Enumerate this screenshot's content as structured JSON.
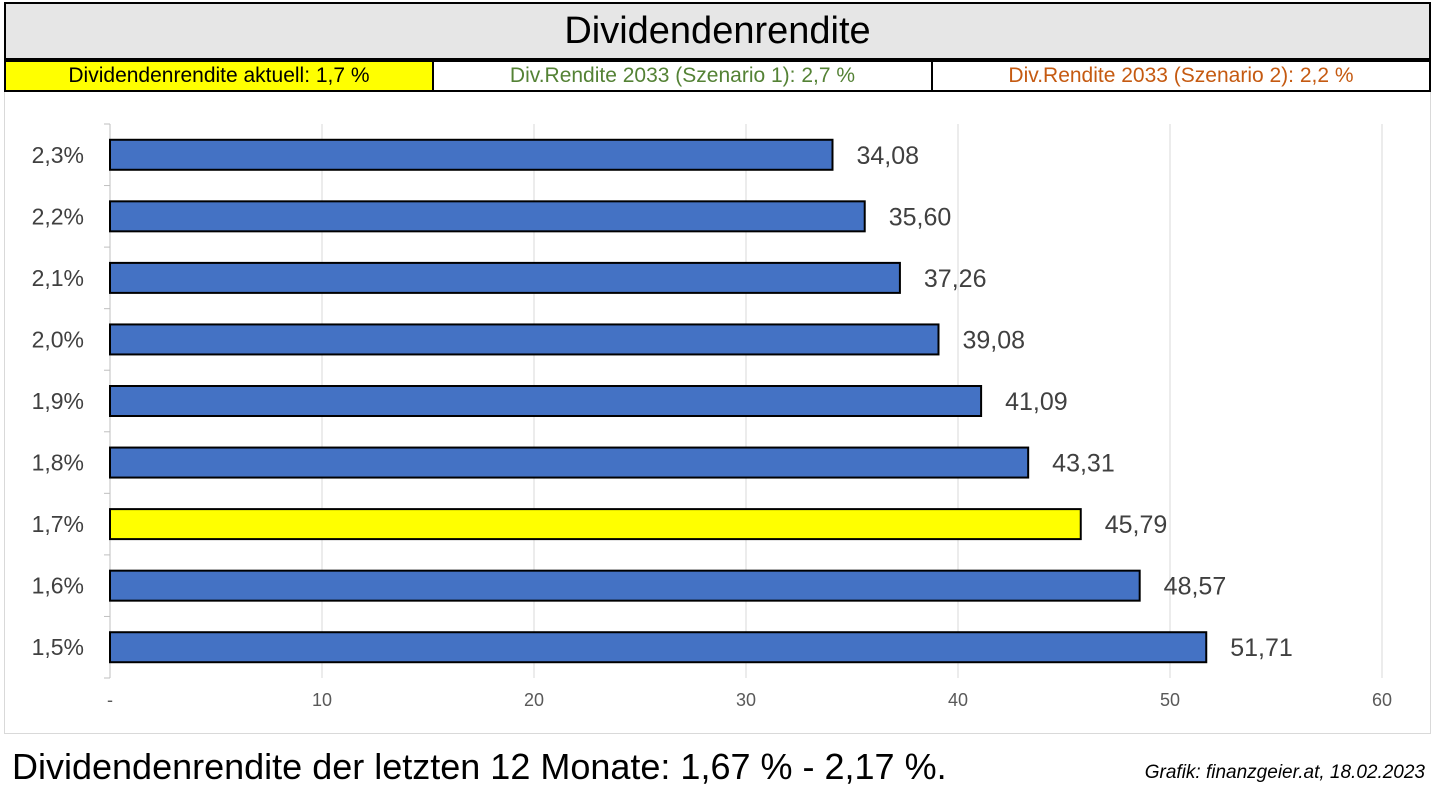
{
  "header": {
    "title": "Dividendenrendite",
    "current_label": "Dividendenrendite aktuell: 1,7 %",
    "scenario1_label": "Div.Rendite 2033 (Szenario 1): 2,7 %",
    "scenario2_label": "Div.Rendite 2033 (Szenario 2): 2,2 %"
  },
  "colors": {
    "bar": "#4472c4",
    "highlight": "#ffff00",
    "scenario1_text": "#548235",
    "scenario2_text": "#c55a11",
    "grid": "#d9d9d9"
  },
  "chart_data": {
    "type": "bar",
    "orientation": "horizontal",
    "categories": [
      "2,3%",
      "2,2%",
      "2,1%",
      "2,0%",
      "1,9%",
      "1,8%",
      "1,7%",
      "1,6%",
      "1,5%"
    ],
    "values": [
      34.08,
      35.6,
      37.26,
      39.08,
      41.09,
      43.31,
      45.79,
      48.57,
      51.71
    ],
    "value_labels": [
      "34,08",
      "35,60",
      "37,26",
      "39,08",
      "41,09",
      "43,31",
      "45,79",
      "48,57",
      "51,71"
    ],
    "highlight_category": "1,7%",
    "x_ticks": [
      0,
      10,
      20,
      30,
      40,
      50,
      60
    ],
    "x_tick_labels": [
      "-",
      "10",
      "20",
      "30",
      "40",
      "50",
      "60"
    ],
    "xlim": [
      0,
      60
    ],
    "grid": true,
    "legend": "none"
  },
  "footer": {
    "text": "Dividendenrendite der letzten 12 Monate: 1,67 % - 2,17 %.",
    "source": "Grafik: finanzgeier.at, 18.02.2023"
  }
}
